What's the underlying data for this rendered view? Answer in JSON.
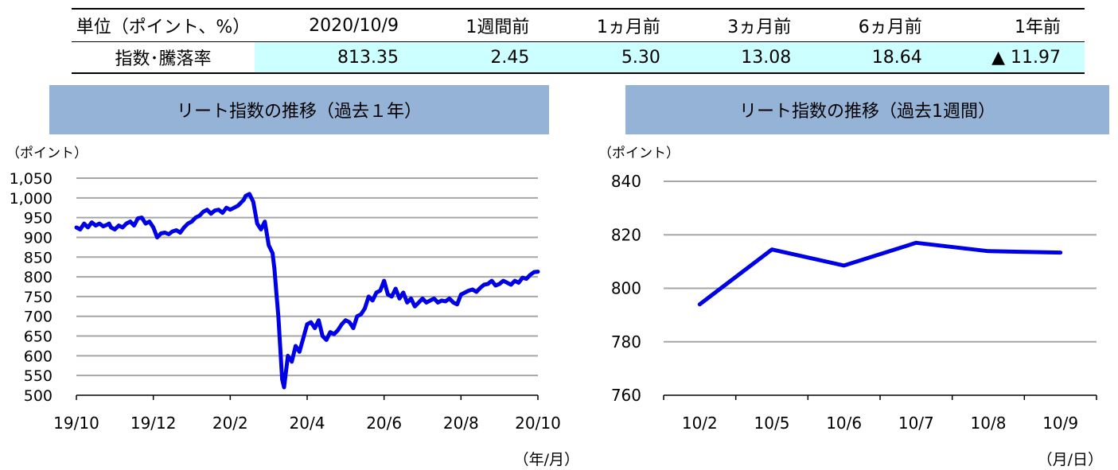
{
  "table": {
    "headers": [
      "単位（ポイント、%）",
      "2020/10/9",
      "1週間前",
      "1ヵ月前",
      "3ヵ月前",
      "6ヵ月前",
      "1年前"
    ],
    "row_label": "指数･騰落率",
    "values": [
      "813.35",
      "2.45",
      "5.30",
      "13.08",
      "18.64",
      "▲ 11.97"
    ]
  },
  "chart_data": [
    {
      "type": "line",
      "title": "リート指数の推移（過去１年）",
      "ylabel": "（ポイント）",
      "xlabel": "（年/月）",
      "ylim": [
        500,
        1050
      ],
      "yticks": [
        "1,050",
        "1,000",
        "950",
        "900",
        "850",
        "800",
        "750",
        "700",
        "650",
        "600",
        "550",
        "500"
      ],
      "xticks": [
        "19/10",
        "19/12",
        "20/2",
        "20/4",
        "20/6",
        "20/8",
        "20/10"
      ],
      "grid": true,
      "color": "#0000e6",
      "series": [
        {
          "x": [
            0,
            0.1,
            0.2,
            0.3,
            0.4,
            0.5,
            0.6,
            0.7,
            0.8,
            0.85,
            0.9,
            1.0,
            1.1,
            1.2,
            1.3,
            1.4,
            1.5,
            1.6,
            1.7,
            1.8,
            1.9,
            2.0,
            2.1,
            2.2,
            2.3,
            2.4,
            2.5,
            2.6,
            2.7,
            2.8,
            2.9,
            3.0,
            3.1,
            3.2,
            3.3,
            3.4,
            3.5,
            3.6,
            3.7,
            3.8,
            3.9,
            4.0,
            4.1,
            4.2,
            4.25,
            4.3,
            4.35,
            4.4,
            4.5,
            4.6,
            4.7,
            4.8,
            4.9,
            5.0,
            5.05,
            5.1,
            5.15,
            5.2,
            5.25,
            5.3,
            5.35,
            5.4,
            5.45,
            5.5,
            5.6,
            5.7,
            5.8,
            5.9,
            6.0,
            6.1,
            6.2,
            6.3,
            6.4,
            6.5,
            6.6,
            6.7,
            6.8,
            6.9,
            7.0,
            7.1,
            7.2,
            7.3,
            7.4,
            7.5,
            7.6,
            7.7,
            7.8,
            7.9,
            8.0,
            8.1,
            8.2,
            8.3,
            8.4,
            8.5,
            8.6,
            8.7,
            8.8,
            8.9,
            9.0,
            9.1,
            9.2,
            9.3,
            9.4,
            9.5,
            9.6,
            9.7,
            9.8,
            9.9,
            10.0,
            10.1,
            10.2,
            10.3,
            10.4,
            10.5,
            10.6,
            10.7,
            10.8,
            10.9,
            11.0,
            11.1,
            11.2,
            11.3,
            11.4,
            11.5,
            11.6,
            11.7,
            11.8,
            11.9,
            12.0
          ],
          "values": [
            925,
            920,
            935,
            925,
            938,
            930,
            935,
            928,
            932,
            935,
            925,
            920,
            930,
            925,
            935,
            940,
            930,
            948,
            950,
            935,
            940,
            925,
            900,
            910,
            912,
            908,
            915,
            918,
            912,
            925,
            935,
            940,
            950,
            955,
            965,
            970,
            960,
            968,
            970,
            962,
            975,
            970,
            975,
            980,
            985,
            990,
            995,
            1005,
            1010,
            990,
            935,
            920,
            940,
            880,
            870,
            860,
            820,
            760,
            700,
            620,
            540,
            520,
            560,
            600,
            585,
            625,
            610,
            645,
            680,
            685,
            670,
            690,
            650,
            640,
            660,
            655,
            665,
            680,
            690,
            685,
            670,
            700,
            705,
            720,
            750,
            740,
            760,
            765,
            790,
            755,
            750,
            770,
            745,
            760,
            735,
            745,
            725,
            735,
            745,
            735,
            740,
            745,
            735,
            740,
            738,
            745,
            735,
            730,
            755,
            760,
            765,
            768,
            762,
            772,
            780,
            782,
            790,
            778,
            782,
            790,
            785,
            780,
            790,
            785,
            798,
            795,
            805,
            812,
            813
          ]
        }
      ]
    },
    {
      "type": "line",
      "title": "リート指数の推移（過去1週間）",
      "ylabel": "（ポイント）",
      "xlabel": "（月/日）",
      "ylim": [
        760,
        840
      ],
      "yticks": [
        "840",
        "820",
        "800",
        "780",
        "760"
      ],
      "categories": [
        "10/2",
        "10/5",
        "10/6",
        "10/7",
        "10/8",
        "10/9"
      ],
      "grid": true,
      "color": "#0000e6",
      "series": [
        {
          "values": [
            794,
            814.5,
            808.5,
            817,
            813.9,
            813.35
          ]
        }
      ]
    }
  ]
}
